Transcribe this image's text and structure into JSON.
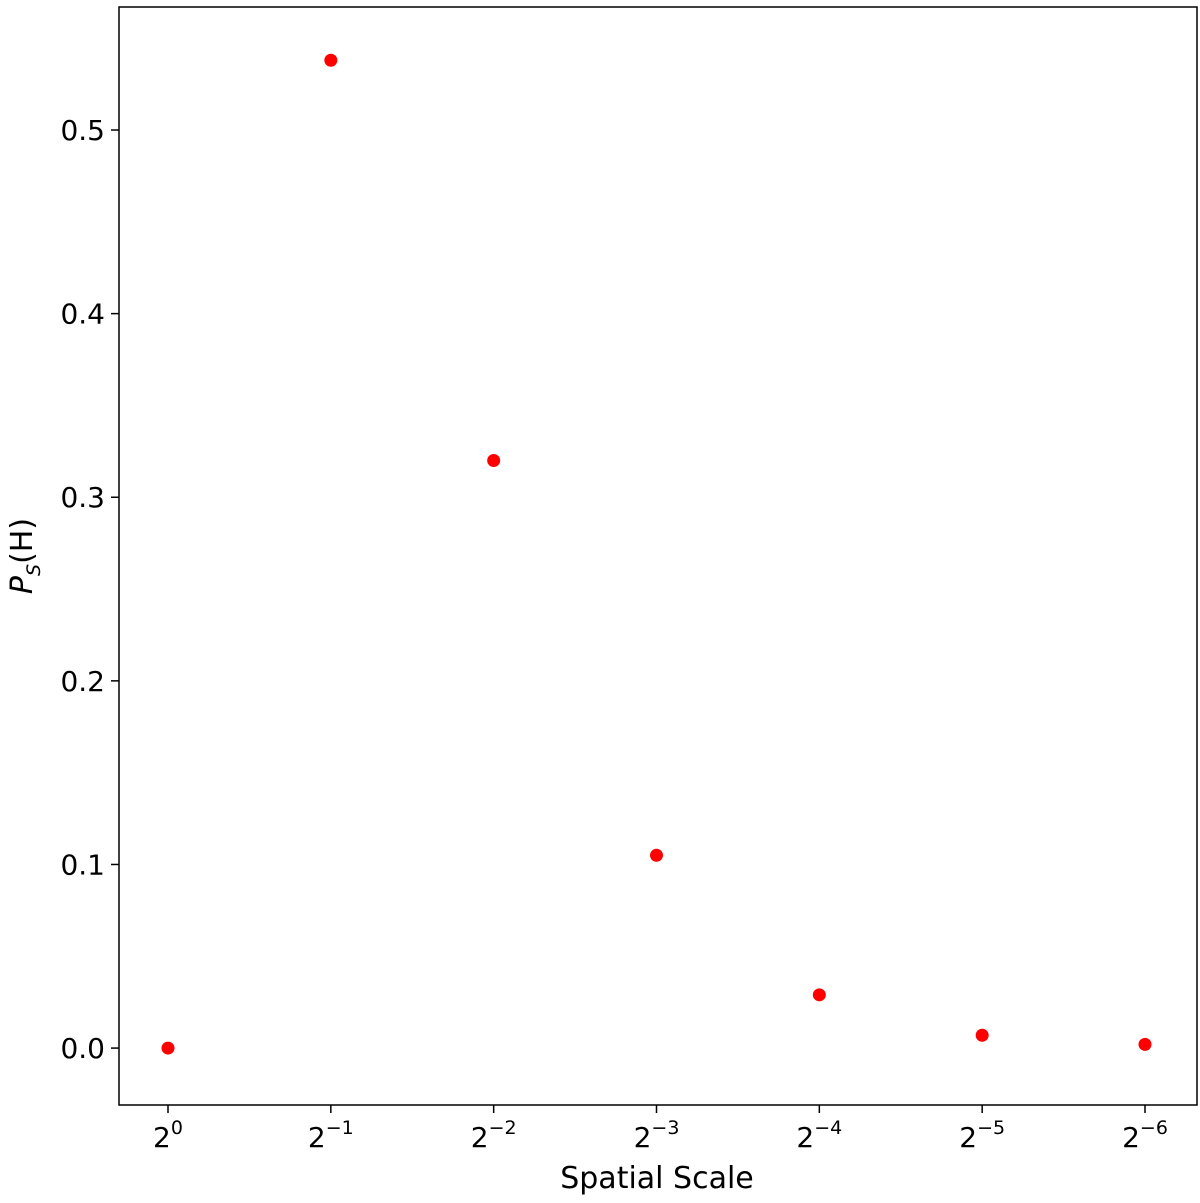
{
  "chart_data": {
    "type": "scatter",
    "title": "",
    "xlabel": "Spatial Scale",
    "ylabel": {
      "base": "P",
      "subscript": "S",
      "argument": "(H)"
    },
    "x_ticks": [
      {
        "base": "2",
        "exponent": "0"
      },
      {
        "base": "2",
        "exponent": "−1"
      },
      {
        "base": "2",
        "exponent": "−2"
      },
      {
        "base": "2",
        "exponent": "−3"
      },
      {
        "base": "2",
        "exponent": "−4"
      },
      {
        "base": "2",
        "exponent": "−5"
      },
      {
        "base": "2",
        "exponent": "−6"
      }
    ],
    "x_values": [
      1,
      0.5,
      0.25,
      0.125,
      0.0625,
      0.03125,
      0.015625
    ],
    "y_values": [
      0.0,
      0.538,
      0.32,
      0.105,
      0.029,
      0.007,
      0.002
    ],
    "y_ticks": [
      "0.0",
      "0.1",
      "0.2",
      "0.3",
      "0.4",
      "0.5"
    ],
    "y_tick_values": [
      0.0,
      0.1,
      0.2,
      0.3,
      0.4,
      0.5
    ],
    "ylim": [
      -0.031,
      0.567
    ],
    "x_scale": "log2-reversed",
    "marker_color": "#ff0000",
    "grid": false,
    "legend": "none"
  }
}
